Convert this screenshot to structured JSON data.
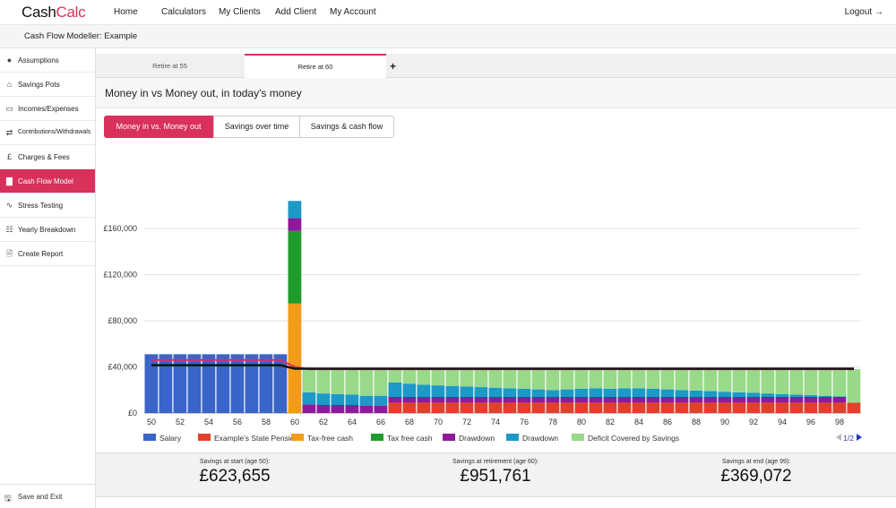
{
  "app": {
    "logo_a": "Cash",
    "logo_b": "Calc"
  },
  "nav": [
    {
      "label": "Home"
    },
    {
      "label": "Calculators"
    },
    {
      "label": "My Clients"
    },
    {
      "label": "Add Client"
    },
    {
      "label": "My Account"
    }
  ],
  "logout": "Logout",
  "breadcrumb": "Cash Flow Modeller: Example",
  "sidebar": {
    "items": [
      {
        "label": "Assumptions",
        "icon": "globe-icon"
      },
      {
        "label": "Savings Pots",
        "icon": "bank-icon"
      },
      {
        "label": "Incomes/Expenses",
        "icon": "money-icon"
      },
      {
        "label": "Contributions/Withdrawals",
        "icon": "exchange-icon"
      },
      {
        "label": "Charges & Fees",
        "icon": "pound-icon"
      },
      {
        "label": "Cash Flow Model",
        "icon": "bar-chart-icon"
      },
      {
        "label": "Stress Testing",
        "icon": "line-chart-icon"
      },
      {
        "label": "Yearly Breakdown",
        "icon": "grid-icon"
      },
      {
        "label": "Create Report",
        "icon": "document-icon"
      }
    ],
    "save_exit": "Save and Exit"
  },
  "tabs": [
    {
      "label": "Retire at 55"
    },
    {
      "label": "Retire at 60"
    }
  ],
  "add_tab": "+",
  "heading": "Money in vs Money out, in today's money",
  "view_buttons": [
    {
      "label": "Money in vs. Money out"
    },
    {
      "label": "Savings over time"
    },
    {
      "label": "Savings & cash flow"
    }
  ],
  "colors": {
    "accent": "#d8315b",
    "salary": "#3a64c8",
    "state_pension": "#e0412a",
    "tax_free_cash_1": "#f39b1a",
    "tax_free_cash_2": "#1e9d2d",
    "drawdown_1": "#8e1a9b",
    "drawdown_2": "#1c99c7",
    "deficit": "#98d98a"
  },
  "chart_data": {
    "type": "bar",
    "stacked": true,
    "x": [
      50,
      51,
      52,
      53,
      54,
      55,
      56,
      57,
      58,
      59,
      60,
      61,
      62,
      63,
      64,
      65,
      66,
      67,
      68,
      69,
      70,
      71,
      72,
      73,
      74,
      75,
      76,
      77,
      78,
      79,
      80,
      81,
      82,
      83,
      84,
      85,
      86,
      87,
      88,
      89,
      90,
      91,
      92,
      93,
      94,
      95,
      96,
      97,
      98,
      99
    ],
    "xticks": [
      "50",
      "52",
      "54",
      "56",
      "58",
      "60",
      "62",
      "64",
      "66",
      "68",
      "70",
      "72",
      "74",
      "76",
      "78",
      "80",
      "82",
      "84",
      "86",
      "88",
      "90",
      "92",
      "94",
      "96",
      "98"
    ],
    "yticks": [
      "£0",
      "£40,000",
      "£80,000",
      "£120,000",
      "£160,000"
    ],
    "ylim": [
      0,
      185000
    ],
    "series": [
      {
        "name": "Salary",
        "values": [
          51000,
          51000,
          51000,
          51000,
          51000,
          51000,
          51000,
          51000,
          51000,
          51000,
          0,
          0,
          0,
          0,
          0,
          0,
          0,
          0,
          0,
          0,
          0,
          0,
          0,
          0,
          0,
          0,
          0,
          0,
          0,
          0,
          0,
          0,
          0,
          0,
          0,
          0,
          0,
          0,
          0,
          0,
          0,
          0,
          0,
          0,
          0,
          0,
          0,
          0,
          0,
          0
        ]
      },
      {
        "name": "Example's State Pension",
        "values": [
          0,
          0,
          0,
          0,
          0,
          0,
          0,
          0,
          0,
          0,
          0,
          0,
          0,
          0,
          0,
          0,
          0,
          9000,
          9000,
          9000,
          9000,
          9000,
          9000,
          9000,
          9000,
          9000,
          9000,
          9000,
          9000,
          9000,
          9000,
          9000,
          9000,
          9000,
          9000,
          9000,
          9000,
          9000,
          9000,
          9000,
          9000,
          9000,
          9000,
          9000,
          9000,
          9000,
          9000,
          9000,
          9000,
          9000
        ]
      },
      {
        "name": "Tax-free cash",
        "values": [
          0,
          0,
          0,
          0,
          0,
          0,
          0,
          0,
          0,
          0,
          95000,
          0,
          0,
          0,
          0,
          0,
          0,
          0,
          0,
          0,
          0,
          0,
          0,
          0,
          0,
          0,
          0,
          0,
          0,
          0,
          0,
          0,
          0,
          0,
          0,
          0,
          0,
          0,
          0,
          0,
          0,
          0,
          0,
          0,
          0,
          0,
          0,
          0,
          0,
          0
        ]
      },
      {
        "name": "Tax free cash",
        "values": [
          0,
          0,
          0,
          0,
          0,
          0,
          0,
          0,
          0,
          0,
          63000,
          0,
          0,
          0,
          0,
          0,
          0,
          0,
          0,
          0,
          0,
          0,
          0,
          0,
          0,
          0,
          0,
          0,
          0,
          0,
          0,
          0,
          0,
          0,
          0,
          0,
          0,
          0,
          0,
          0,
          0,
          0,
          0,
          0,
          0,
          0,
          0,
          0,
          0,
          0
        ]
      },
      {
        "name": "Drawdown",
        "values": [
          0,
          0,
          0,
          0,
          0,
          0,
          0,
          0,
          0,
          0,
          11000,
          7500,
          7000,
          7000,
          7000,
          6500,
          6500,
          5000,
          5000,
          5000,
          5000,
          5000,
          5000,
          5000,
          5000,
          5000,
          5000,
          5000,
          5000,
          5000,
          5000,
          5000,
          5000,
          5000,
          5000,
          5000,
          5000,
          5000,
          5000,
          5000,
          5000,
          5000,
          5000,
          5000,
          5000,
          5000,
          5000,
          5000,
          5000,
          0
        ]
      },
      {
        "name": "Drawdown",
        "values": [
          0,
          0,
          0,
          0,
          0,
          0,
          0,
          0,
          0,
          0,
          15000,
          10500,
          10000,
          9500,
          9000,
          8500,
          8500,
          12500,
          11500,
          10500,
          10000,
          9500,
          9000,
          8500,
          8000,
          7500,
          7000,
          6500,
          6000,
          6500,
          7000,
          7500,
          7000,
          7500,
          7500,
          7000,
          6500,
          6000,
          5500,
          5000,
          4500,
          4000,
          3500,
          3000,
          2500,
          2000,
          1500,
          1000,
          500,
          0
        ]
      },
      {
        "name": "Deficit Covered by Savings",
        "values": [
          0,
          0,
          0,
          0,
          0,
          0,
          0,
          0,
          0,
          0,
          0,
          20000,
          21000,
          21500,
          22000,
          23000,
          23000,
          12500,
          13500,
          14500,
          15000,
          15500,
          16000,
          16500,
          17000,
          17500,
          18000,
          18500,
          19000,
          18500,
          18000,
          17500,
          18000,
          17500,
          17500,
          18000,
          18500,
          19000,
          19500,
          20000,
          20500,
          21000,
          21500,
          22000,
          22500,
          23000,
          23500,
          24000,
          24500,
          29000
        ]
      }
    ],
    "money_out_lines": [
      {
        "values": [
          46000,
          46000,
          46000,
          46000,
          46000,
          46000,
          46000,
          46000,
          46000,
          46000,
          40000,
          38000,
          38000,
          38000,
          38000,
          38000,
          38000,
          38000,
          38000,
          38000,
          38000,
          38000,
          38000,
          38000,
          38000,
          38000,
          38000,
          38000,
          38000,
          38000,
          38000,
          38000,
          38000,
          38000,
          38000,
          38000,
          38000,
          38000,
          38000,
          38000,
          38000,
          38000,
          38000,
          38000,
          38000,
          38000,
          38000,
          38000,
          38000,
          38000
        ]
      },
      {
        "values": [
          41500,
          41500,
          41500,
          41500,
          41500,
          41500,
          41500,
          41500,
          41500,
          41500,
          38500,
          38500,
          38500,
          38500,
          38500,
          38500,
          38500,
          38500,
          38500,
          38500,
          38500,
          38500,
          38500,
          38500,
          38500,
          38500,
          38500,
          38500,
          38500,
          38500,
          38500,
          38500,
          38500,
          38500,
          38500,
          38500,
          38500,
          38500,
          38500,
          38500,
          38500,
          38500,
          38500,
          38500,
          38500,
          38500,
          38500,
          38500,
          38500,
          38500
        ]
      }
    ],
    "legend_labels": [
      "Salary",
      "Example's State Pension",
      "Tax-free cash",
      "Tax free cash",
      "Drawdown",
      "Drawdown",
      "Deficit Covered by Savings"
    ],
    "legend_page": "1/2",
    "grid": true,
    "legend": "bottom"
  },
  "summary": [
    {
      "caption": "Savings at start (age 50):",
      "value": "£623,655"
    },
    {
      "caption": "Savings at retirement (age 60):",
      "value": "£951,761"
    },
    {
      "caption": "Savings at end (age 99):",
      "value": "£369,072"
    }
  ]
}
